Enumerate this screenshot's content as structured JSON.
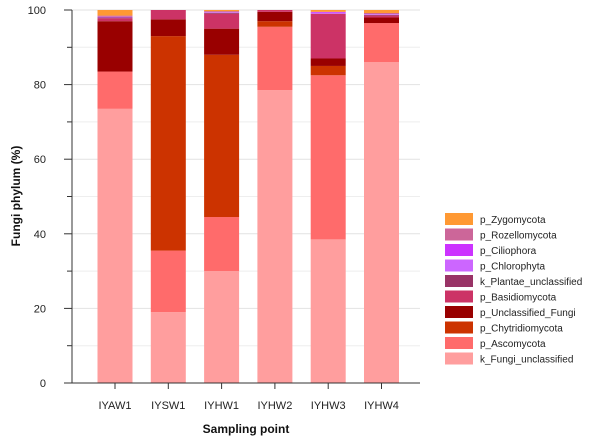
{
  "chart_data": {
    "type": "bar",
    "stacked": true,
    "xlabel": "Sampling point",
    "ylabel": "Fungi phylum (%)",
    "ylim": [
      0,
      100
    ],
    "yticks": [
      0,
      20,
      40,
      60,
      80,
      100
    ],
    "grid": true,
    "legend_position": "right",
    "categories": [
      "IYAW1",
      "IYSW1",
      "IYHW1",
      "IYHW2",
      "IYHW3",
      "IYHW4"
    ],
    "series": [
      {
        "name": "k_Fungi_unclassified",
        "color": "#ff9e9e",
        "values": [
          73.5,
          19,
          30,
          78.5,
          38.5,
          86
        ]
      },
      {
        "name": "p_Ascomycota",
        "color": "#ff6b6b",
        "values": [
          10,
          16.5,
          14.5,
          17,
          44,
          10.5
        ]
      },
      {
        "name": "p_Chytridiomycota",
        "color": "#cc3300",
        "values": [
          0,
          57.5,
          43.5,
          1.5,
          2.5,
          0
        ]
      },
      {
        "name": "p_Unclassified_Fungi",
        "color": "#990000",
        "values": [
          13.5,
          4.5,
          7,
          2.5,
          2,
          1.5
        ]
      },
      {
        "name": "p_Basidiomycota",
        "color": "#cc3366",
        "values": [
          0.8,
          2.5,
          4,
          0.5,
          12,
          0.5
        ]
      },
      {
        "name": "k_Plantae_unclassified",
        "color": "#993366",
        "values": [
          0.2,
          0,
          0.2,
          0,
          0,
          0.2
        ]
      },
      {
        "name": "p_Chlorophyta",
        "color": "#cc66ff",
        "values": [
          0.2,
          0,
          0.2,
          0,
          0.3,
          0.2
        ]
      },
      {
        "name": "p_Ciliophora",
        "color": "#cc33ff",
        "values": [
          0,
          0,
          0,
          0,
          0.2,
          0
        ]
      },
      {
        "name": "p_Rozellomycota",
        "color": "#cc6699",
        "values": [
          0.3,
          0,
          0.3,
          0,
          0,
          0.3
        ]
      },
      {
        "name": "p_Zygomycota",
        "color": "#ff9933",
        "values": [
          1.5,
          0,
          0.3,
          0,
          0.5,
          0.8
        ]
      }
    ]
  }
}
